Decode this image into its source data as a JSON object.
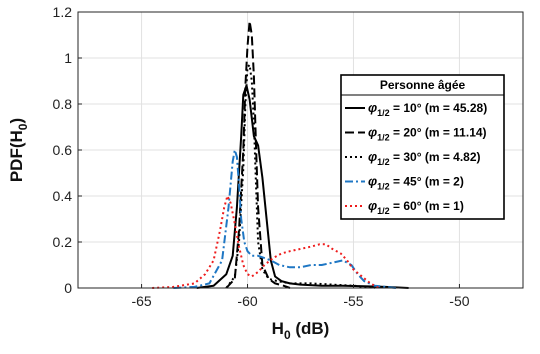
{
  "chart_data": {
    "type": "line",
    "xlabel": "H",
    "xlabel_sub": "0",
    "xlabel_unit": " (dB)",
    "ylabel": "PDF(H",
    "ylabel_sub": "0",
    "ylabel_end": ")",
    "xlim": [
      -68,
      -47
    ],
    "ylim": [
      0,
      1.2
    ],
    "xticks": [
      -65,
      -60,
      -55,
      -50
    ],
    "yticks": [
      0,
      0.2,
      0.4,
      0.6,
      0.8,
      1,
      1.2
    ],
    "grid": true,
    "legend": {
      "title": "Personne âgée",
      "placement": "right"
    },
    "series": [
      {
        "phi": "φ",
        "sub": "1/2",
        "label": " = 10° (m = 45.28)",
        "color": "#000000",
        "dash": "solid",
        "x": [
          -62.4,
          -61.6,
          -61.0,
          -60.7,
          -60.5,
          -60.3,
          -60.2,
          -60.05,
          -59.9,
          -59.7,
          -59.5,
          -59.3,
          -59.1,
          -58.9,
          -58.7,
          -58.4,
          -58.0,
          -57.5,
          -56.5,
          -55.5,
          -54.5,
          -53.5,
          -52.4
        ],
        "y": [
          0,
          0.01,
          0.06,
          0.14,
          0.35,
          0.66,
          0.84,
          0.88,
          0.82,
          0.66,
          0.62,
          0.48,
          0.3,
          0.12,
          0.05,
          0.03,
          0.02,
          0.015,
          0.01,
          0.01,
          0.008,
          0.005,
          0
        ]
      },
      {
        "phi": "φ",
        "sub": "1/2",
        "label": " = 20° (m = 11.14)",
        "color": "#000000",
        "dash": "dashed",
        "x": [
          -61.0,
          -60.6,
          -60.4,
          -60.2,
          -60.1,
          -60.0,
          -59.9,
          -59.8,
          -59.7,
          -59.6,
          -59.5,
          -59.3,
          -59.0,
          -58.7,
          -58.3,
          -58.0
        ],
        "y": [
          0,
          0.04,
          0.25,
          0.6,
          0.88,
          1.05,
          1.16,
          1.1,
          0.92,
          0.62,
          0.35,
          0.1,
          0.04,
          0.02,
          0.01,
          0
        ]
      },
      {
        "phi": "φ",
        "sub": "1/2",
        "label": " = 30° (m = 4.82)",
        "color": "#000000",
        "dash": "dotted",
        "x": [
          -61.0,
          -60.6,
          -60.4,
          -60.2,
          -60.1,
          -60.0,
          -59.9,
          -59.8,
          -59.7,
          -59.6,
          -59.5,
          -59.3,
          -59.0,
          -58.6,
          -58.0,
          -57.0,
          -56.0,
          -55.0,
          -54.0
        ],
        "y": [
          0,
          0.05,
          0.2,
          0.52,
          0.8,
          0.96,
          0.97,
          0.9,
          0.72,
          0.45,
          0.2,
          0.08,
          0.04,
          0.03,
          0.02,
          0.02,
          0.015,
          0.01,
          0
        ]
      },
      {
        "phi": "φ",
        "sub": "1/2",
        "label": " = 45° (m = 2)",
        "color": "#1f77c4",
        "dash": "dashdot",
        "x": [
          -63.5,
          -62.5,
          -61.8,
          -61.2,
          -60.9,
          -60.7,
          -60.6,
          -60.5,
          -60.4,
          -60.3,
          -60.15,
          -60.0,
          -59.8,
          -59.5,
          -59.2,
          -58.9,
          -58.5,
          -58.0,
          -57.5,
          -57.0,
          -56.5,
          -56.0,
          -55.5,
          -55.1,
          -54.8,
          -54.5,
          -54.0,
          -53.0
        ],
        "y": [
          0,
          0.005,
          0.02,
          0.12,
          0.35,
          0.55,
          0.6,
          0.57,
          0.45,
          0.3,
          0.2,
          0.16,
          0.14,
          0.14,
          0.13,
          0.12,
          0.1,
          0.09,
          0.09,
          0.1,
          0.1,
          0.11,
          0.12,
          0.1,
          0.06,
          0.03,
          0.01,
          0
        ]
      },
      {
        "phi": "φ",
        "sub": "1/2",
        "label": " = 60° (m = 1)",
        "color": "#ee1c1c",
        "dash": "dotted",
        "x": [
          -64.5,
          -63.5,
          -62.5,
          -62.0,
          -61.6,
          -61.3,
          -61.1,
          -60.95,
          -60.8,
          -60.6,
          -60.4,
          -60.2,
          -60.0,
          -59.8,
          -59.5,
          -59.2,
          -58.8,
          -58.4,
          -58.0,
          -57.5,
          -57.0,
          -56.6,
          -56.3,
          -56.0,
          -55.6,
          -55.3,
          -55.0,
          -54.6,
          -54.2,
          -53.8
        ],
        "y": [
          0,
          0.005,
          0.02,
          0.06,
          0.12,
          0.25,
          0.35,
          0.4,
          0.37,
          0.28,
          0.18,
          0.1,
          0.06,
          0.05,
          0.07,
          0.1,
          0.13,
          0.15,
          0.16,
          0.17,
          0.18,
          0.19,
          0.19,
          0.17,
          0.15,
          0.12,
          0.08,
          0.05,
          0.02,
          0
        ]
      }
    ]
  }
}
